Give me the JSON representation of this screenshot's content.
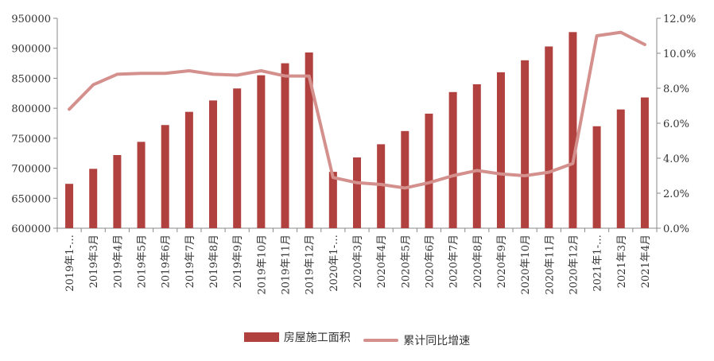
{
  "chart_data": {
    "type": "bar",
    "categories": [
      "2019年1-…",
      "2019年3月",
      "2019年4月",
      "2019年5月",
      "2019年6月",
      "2019年7月",
      "2019年8月",
      "2019年9月",
      "2019年10月",
      "2019年11月",
      "2019年12月",
      "2020年1-…",
      "2020年3月",
      "2020年4月",
      "2020年5月",
      "2020年6月",
      "2020年7月",
      "2020年8月",
      "2020年9月",
      "2020年10月",
      "2020年11月",
      "2020年12月",
      "2021年1-…",
      "2021年3月",
      "2021年4月"
    ],
    "series": [
      {
        "name": "房屋施工面积",
        "type": "bar",
        "axis": "left",
        "color": "#B0413E",
        "values": [
          674000,
          699000,
          722000,
          744000,
          772000,
          794000,
          813000,
          833000,
          855000,
          875000,
          893000,
          694000,
          718000,
          740000,
          762000,
          791000,
          827000,
          840000,
          860000,
          880000,
          903000,
          927000,
          770000,
          798000,
          818000
        ]
      },
      {
        "name": "累计同比增速",
        "type": "line",
        "axis": "right",
        "color": "#D4908D",
        "values": [
          6.8,
          8.2,
          8.8,
          8.85,
          8.85,
          9.0,
          8.8,
          8.75,
          9.0,
          8.7,
          8.7,
          2.9,
          2.6,
          2.5,
          2.3,
          2.6,
          3.0,
          3.3,
          3.1,
          3.0,
          3.2,
          3.7,
          11.0,
          11.2,
          10.5
        ]
      }
    ],
    "y_left": {
      "min": 600000,
      "max": 950000,
      "step": 50000,
      "ticks": [
        "600000",
        "650000",
        "700000",
        "750000",
        "800000",
        "850000",
        "900000",
        "950000"
      ]
    },
    "y_right": {
      "min": 0,
      "max": 12,
      "step": 2,
      "ticks": [
        "0.0%",
        "2.0%",
        "4.0%",
        "6.0%",
        "8.0%",
        "10.0%",
        "12.0%"
      ]
    },
    "legend_position": "bottom",
    "grid": false
  },
  "legend": {
    "items": [
      {
        "label": "房屋施工面积",
        "color": "#B0413E",
        "kind": "bar"
      },
      {
        "label": "累计同比增速",
        "color": "#D4908D",
        "kind": "line"
      }
    ]
  }
}
